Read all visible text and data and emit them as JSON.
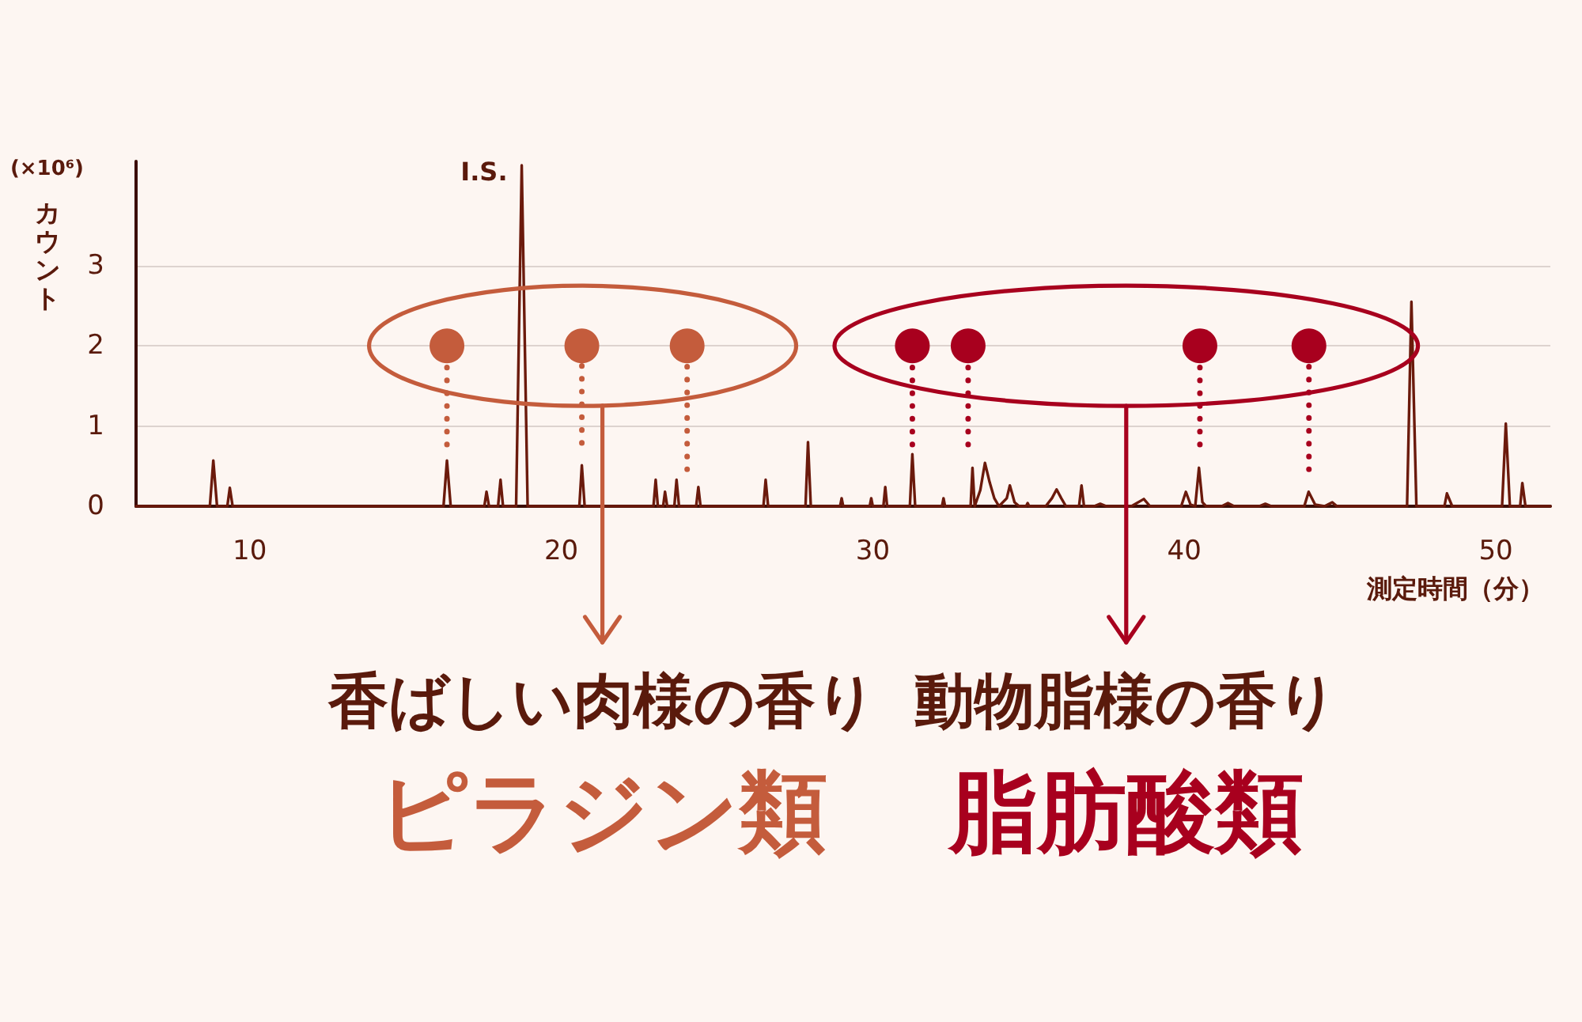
{
  "chart_data": {
    "type": "line",
    "xlabel": "測定時間（分）",
    "ylabel": "(×10⁶)\nカウント",
    "xlim": [
      6.35,
      51.75
    ],
    "xticks": [
      10,
      20,
      30,
      40,
      50
    ],
    "ylim": [
      0,
      4.3
    ],
    "yticks": [
      0,
      1,
      2,
      3
    ],
    "grid": "y",
    "legend": false,
    "annotations": [
      "香ばしい肉様の香り",
      "動物脂様の香り",
      {
        "text": "I.S.",
        "x": 18.73,
        "y": 4.25
      }
    ],
    "series": [
      {
        "color": "#6b1a0c",
        "x": [
          6.35,
          8.72,
          8.83,
          8.95,
          9.28,
          9.36,
          9.45,
          16.22,
          16.33,
          16.45,
          17.53,
          17.6,
          17.68,
          17.97,
          18.05,
          18.13,
          18.55,
          18.73,
          18.92,
          20.58,
          20.66,
          20.75,
          22.96,
          23.03,
          23.1,
          23.27,
          23.33,
          23.4,
          23.63,
          23.7,
          23.78,
          24.33,
          24.4,
          24.47,
          26.49,
          26.56,
          26.64,
          27.84,
          27.92,
          28.01,
          28.95,
          29.0,
          29.05,
          29.9,
          29.95,
          30.0,
          30.34,
          30.4,
          30.46,
          31.19,
          31.27,
          31.36,
          32.22,
          32.27,
          32.32,
          33.14,
          33.2,
          33.27,
          33.45,
          33.6,
          33.75,
          33.9,
          34.05,
          34.3,
          34.4,
          34.55,
          34.7,
          34.92,
          34.97,
          35.02,
          35.55,
          35.75,
          35.9,
          36.05,
          36.2,
          36.62,
          36.7,
          36.78,
          37.1,
          37.3,
          37.5,
          38.3,
          38.7,
          38.9,
          39.9,
          40.05,
          40.2,
          40.35,
          40.47,
          40.58,
          40.7,
          41.2,
          41.4,
          41.6,
          42.4,
          42.6,
          42.8,
          43.85,
          43.99,
          44.2,
          44.5,
          44.75,
          44.9,
          47.15,
          47.29,
          47.45,
          48.35,
          48.43,
          48.6,
          50.2,
          50.32,
          50.45,
          50.78,
          50.85,
          50.95,
          51.75
        ],
        "values": [
          0,
          0,
          0.57,
          0,
          0,
          0.23,
          0,
          0,
          0.57,
          0,
          0,
          0.18,
          0,
          0,
          0.33,
          0,
          0,
          4.25,
          0,
          0,
          0.51,
          0,
          0,
          0.33,
          0,
          0,
          0.18,
          0,
          0,
          0.33,
          0,
          0,
          0.24,
          0,
          0,
          0.33,
          0,
          0,
          0.8,
          0,
          0,
          0.1,
          0,
          0,
          0.1,
          0,
          0,
          0.24,
          0,
          0,
          0.65,
          0,
          0,
          0.1,
          0,
          0,
          0.48,
          0,
          0.2,
          0.54,
          0.3,
          0.1,
          0,
          0.1,
          0.26,
          0.05,
          0,
          0,
          0.04,
          0,
          0,
          0.1,
          0.21,
          0.1,
          0,
          0,
          0.26,
          0,
          0,
          0.03,
          0,
          0,
          0.09,
          0,
          0,
          0.18,
          0.02,
          0,
          0.48,
          0.05,
          0,
          0,
          0.04,
          0,
          0,
          0.03,
          0,
          0,
          0.18,
          0.02,
          0,
          0.05,
          0,
          0,
          2.55,
          0,
          0,
          0.16,
          0,
          0,
          1.03,
          0,
          0,
          0.29,
          0,
          0
        ]
      },
      {
        "type": "scatter",
        "name": "ピラジン類",
        "color": "#c45c3c",
        "marker": "circle",
        "x": [
          16.33,
          20.66,
          24.04
        ],
        "values": [
          2,
          2,
          2
        ],
        "errors": [
          [
            0.77,
            2
          ],
          [
            0.79,
            2
          ],
          [
            0.46,
            2
          ]
        ]
      },
      {
        "type": "scatter",
        "name": "脂肪酸類",
        "color": "#a8001e",
        "marker": "circle",
        "x": [
          31.27,
          33.06,
          40.5,
          44.0
        ],
        "values": [
          2,
          2,
          2,
          2
        ],
        "errors": [
          [
            0.77,
            2
          ],
          [
            0.77,
            2
          ],
          [
            0.77,
            2
          ],
          [
            0.46,
            2
          ]
        ]
      }
    ]
  }
}
